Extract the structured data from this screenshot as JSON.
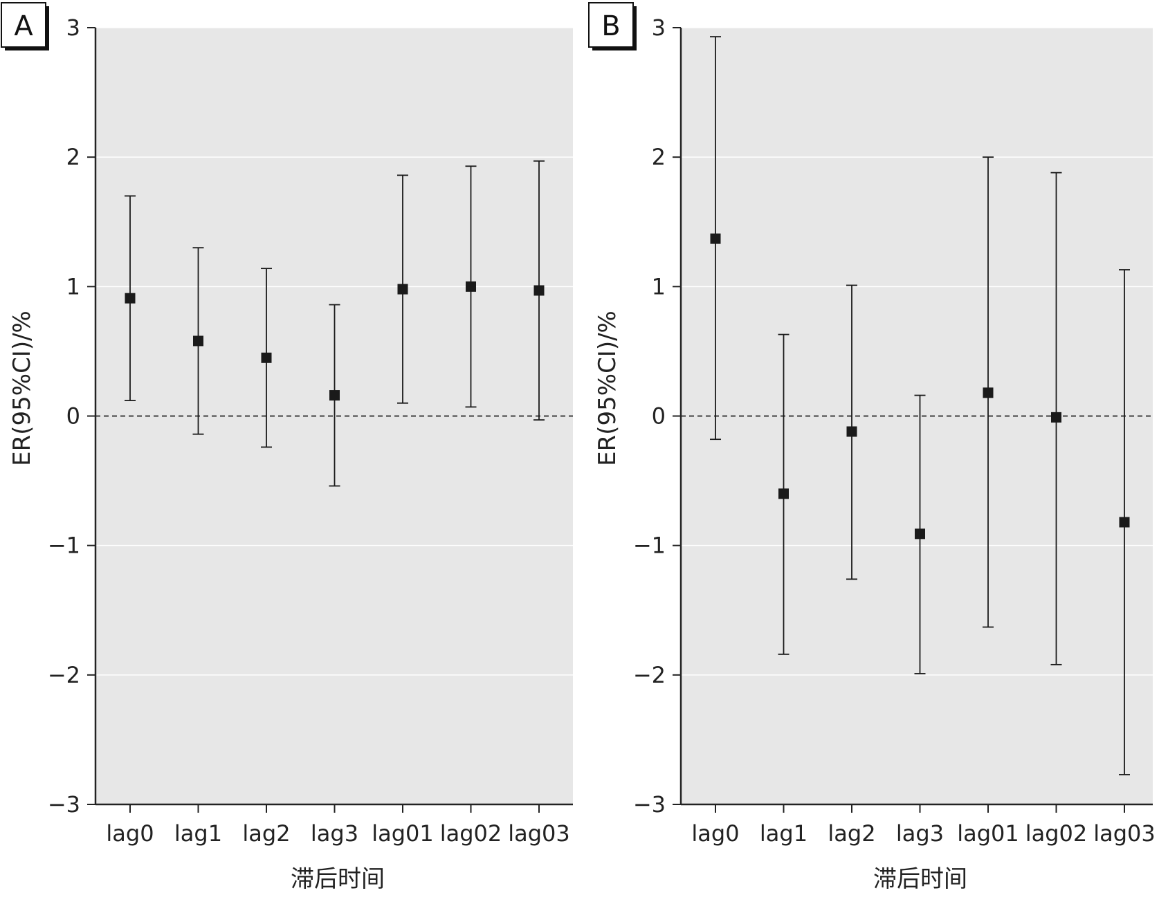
{
  "chart_data": [
    {
      "type": "scatter",
      "panel_label": "A",
      "categories": [
        "lag0",
        "lag1",
        "lag2",
        "lag3",
        "lag01",
        "lag02",
        "lag03"
      ],
      "values": [
        0.91,
        0.58,
        0.45,
        0.16,
        0.98,
        1.0,
        0.97
      ],
      "ci_lower": [
        0.12,
        -0.14,
        -0.24,
        -0.54,
        0.1,
        0.07,
        -0.03
      ],
      "ci_upper": [
        1.7,
        1.3,
        1.14,
        0.86,
        1.86,
        1.93,
        1.97
      ],
      "xlabel": "滞后时间",
      "ylabel": "ER(95%CI)/%",
      "ylim": [
        -3,
        3
      ],
      "yticks": [
        "−3",
        "−2",
        "−1",
        "0",
        "1",
        "2",
        "3"
      ],
      "reference_line": 0,
      "grid": true
    },
    {
      "type": "scatter",
      "panel_label": "B",
      "categories": [
        "lag0",
        "lag1",
        "lag2",
        "lag3",
        "lag01",
        "lag02",
        "lag03"
      ],
      "values": [
        1.37,
        -0.6,
        -0.12,
        -0.91,
        0.18,
        -0.01,
        -0.82
      ],
      "ci_lower": [
        -0.18,
        -1.84,
        -1.26,
        -1.99,
        -1.63,
        -1.92,
        -2.77
      ],
      "ci_upper": [
        2.93,
        0.63,
        1.01,
        0.16,
        2.0,
        1.88,
        1.13
      ],
      "xlabel": "滞后时间",
      "ylabel": "ER(95%CI)/%",
      "ylim": [
        -3,
        3
      ],
      "yticks": [
        "−3",
        "−2",
        "−1",
        "0",
        "1",
        "2",
        "3"
      ],
      "reference_line": 0,
      "grid": true
    }
  ],
  "colors": {
    "panel_bg": "#e7e7e7",
    "grid": "#ffffff",
    "marker": "#1a1a1a",
    "axis": "#222222"
  }
}
